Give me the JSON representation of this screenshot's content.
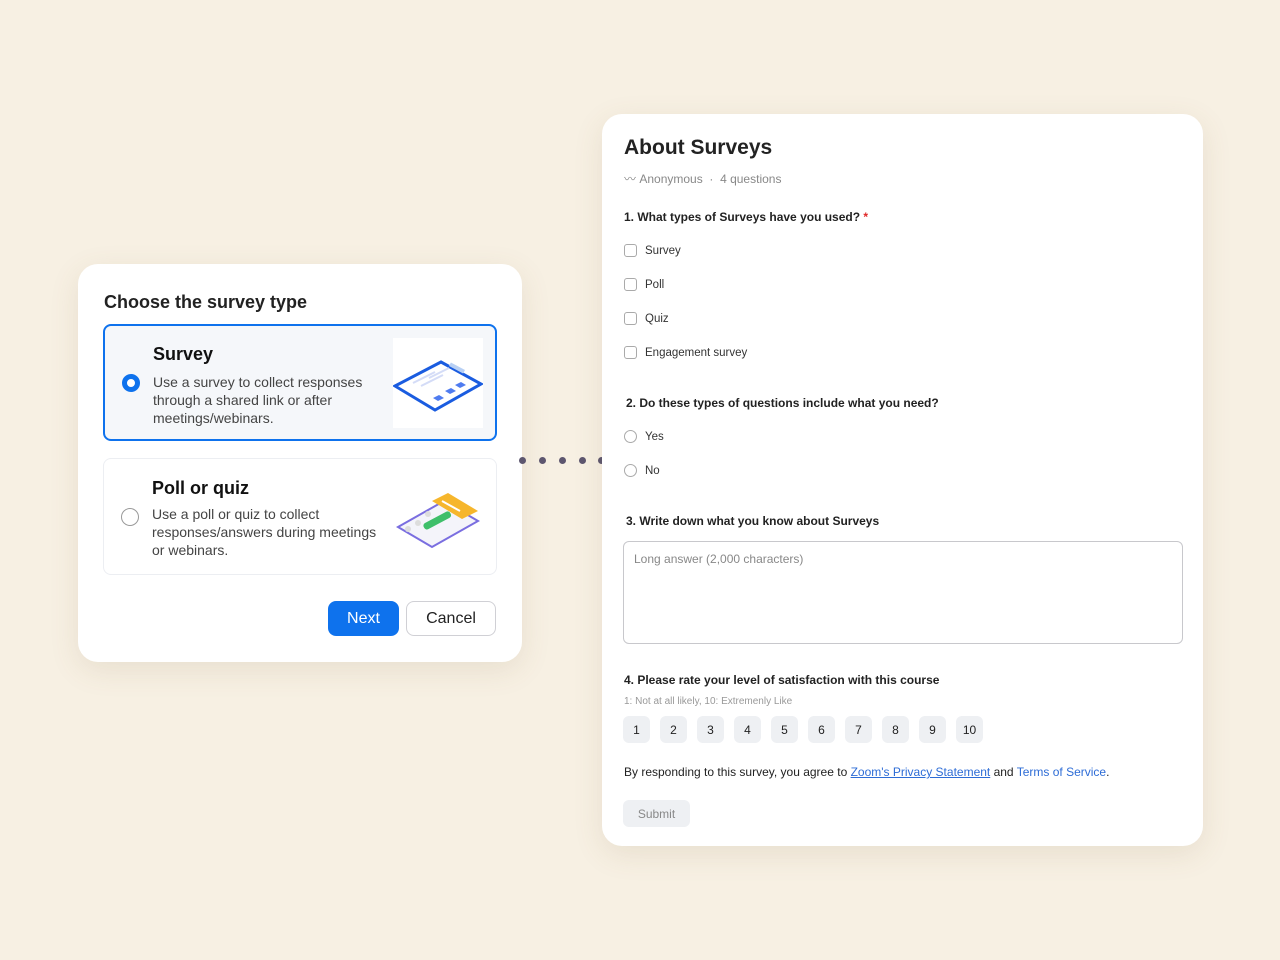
{
  "dialog": {
    "title": "Choose the survey type",
    "options": [
      {
        "title": "Survey",
        "description": "Use a survey to collect responses through a shared link or after meetings/webinars.",
        "selected": true
      },
      {
        "title": "Poll or quiz",
        "description": "Use a poll or quiz to collect responses/answers during meetings or webinars.",
        "selected": false
      }
    ],
    "next_label": "Next",
    "cancel_label": "Cancel"
  },
  "form": {
    "title": "About Surveys",
    "anonymous": "Anonymous",
    "separator": "·",
    "question_count": "4 questions",
    "q1": {
      "label": "1. What types of Surveys have you used?",
      "required": "*",
      "options": [
        "Survey",
        "Poll",
        "Quiz",
        "Engagement survey"
      ]
    },
    "q2": {
      "label": "2. Do these types of questions include what you need?",
      "options": [
        "Yes",
        "No"
      ]
    },
    "q3": {
      "label": "3. Write down what you know about Surveys",
      "placeholder": "Long answer (2,000 characters)"
    },
    "q4": {
      "label": "4. Please rate your level of satisfaction with this course",
      "hint": "1: Not at all likely, 10: Extremenly Like",
      "scale": [
        "1",
        "2",
        "3",
        "4",
        "5",
        "6",
        "7",
        "8",
        "9",
        "10"
      ]
    },
    "consent": {
      "prefix": "By responding to this survey, you agree to ",
      "privacy": "Zoom's Privacy Statement",
      "and": " and ",
      "terms": "Terms of Service",
      "suffix": "."
    },
    "submit_label": "Submit"
  },
  "colors": {
    "accent": "#0e72ed",
    "background": "#f7f0e3",
    "required": "#e02828",
    "link": "#2d6cd6"
  }
}
